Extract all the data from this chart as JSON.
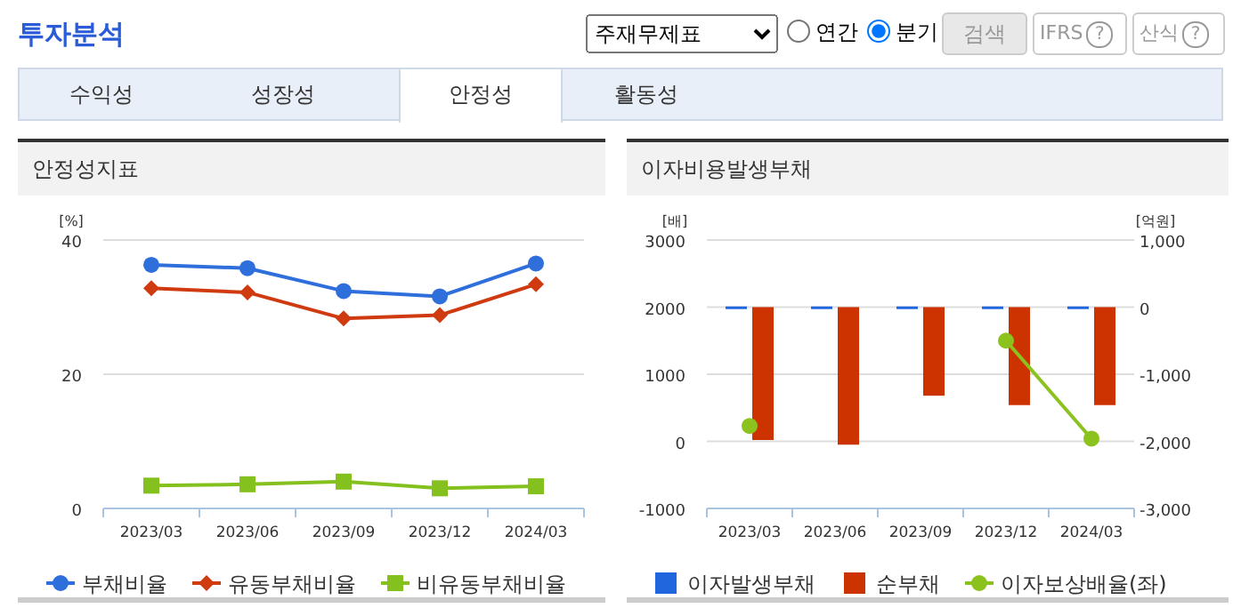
{
  "chart_data": [
    {
      "type": "other",
      "title": "투자분석",
      "annotations": [
        "주재무제표",
        "연간",
        "분기",
        "검색",
        "IFRS",
        "?",
        "산식",
        "?",
        "수익성",
        "성장성",
        "안정성",
        "활동성"
      ]
    },
    {
      "type": "line",
      "title": "안정성지표",
      "ylabel": "[%]",
      "categories": [
        "2023/03",
        "2023/06",
        "2023/09",
        "2023/12",
        "2024/03"
      ],
      "series": [
        {
          "name": "부채비율",
          "color": "#2e6fdc",
          "marker": "circle",
          "values": [
            36.3,
            35.8,
            32.4,
            31.6,
            36.5
          ]
        },
        {
          "name": "유동부채비율",
          "color": "#d03a10",
          "marker": "diamond",
          "values": [
            32.8,
            32.2,
            28.3,
            28.8,
            33.4
          ]
        },
        {
          "name": "비유동부채비율",
          "color": "#84c01e",
          "marker": "square",
          "values": [
            3.4,
            3.6,
            4.0,
            3.0,
            3.3
          ]
        }
      ],
      "ylim": [
        0,
        40
      ],
      "yticks": [
        0,
        20,
        40
      ],
      "grid": "y",
      "legend": "bottom"
    },
    {
      "type": "bar",
      "title": "이자비용발생부채",
      "ylabel": "[배]",
      "y2label": "[억원]",
      "categories": [
        "2023/03",
        "2023/06",
        "2023/09",
        "2023/12",
        "2024/03"
      ],
      "series": [
        {
          "name": "이자발생부채",
          "color": "#2266dd",
          "axis": "y2",
          "values": [
            10,
            10,
            10,
            10,
            10
          ]
        },
        {
          "name": "순부채",
          "color": "#cc3300",
          "axis": "y2",
          "values": [
            -1980,
            -2050,
            -1320,
            -1460,
            -1460
          ]
        },
        {
          "name": "이자보상배율(좌)",
          "type": "line",
          "color": "#8cc21e",
          "marker": "circle",
          "values": [
            230,
            null,
            null,
            1500,
            40
          ]
        }
      ],
      "ylim": [
        -1000,
        3000
      ],
      "yticks": [
        -1000,
        0,
        1000,
        2000,
        3000
      ],
      "y2lim": [
        -3000,
        1000
      ],
      "y2ticks": [
        {
          "value": -3000,
          "label": "-3,000"
        },
        {
          "value": -2000,
          "label": "-2,000"
        },
        {
          "value": -1000,
          "label": "-1,000"
        },
        0,
        {
          "value": 1000,
          "label": "1,000"
        }
      ],
      "grid": "y",
      "legend": "bottom"
    }
  ]
}
